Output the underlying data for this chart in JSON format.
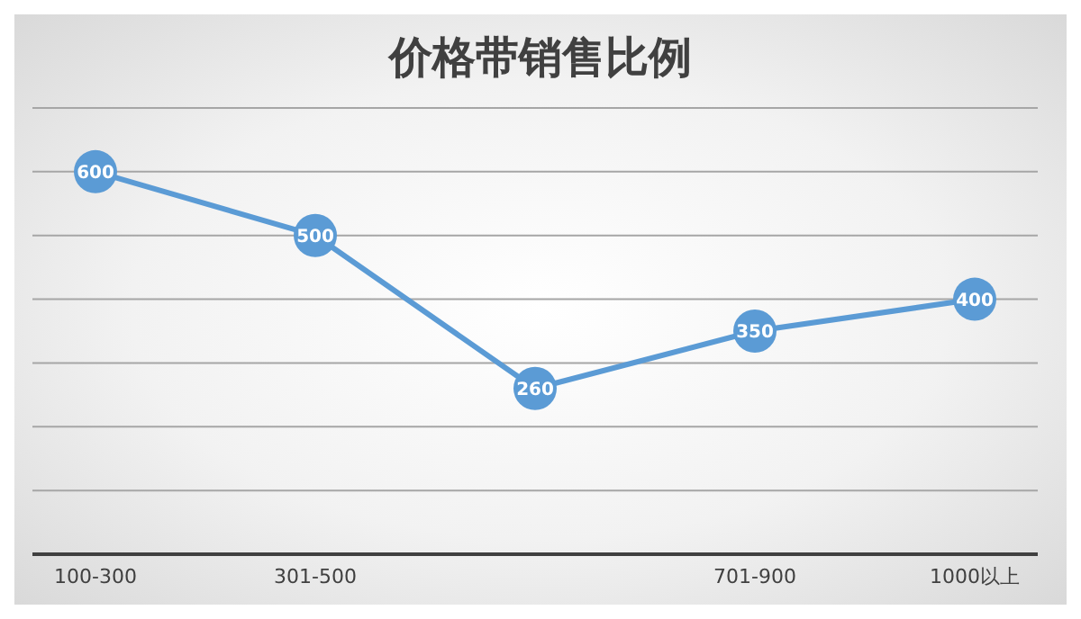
{
  "chart_data": {
    "type": "line",
    "title": "价格带销售比例",
    "categories": [
      "100-300",
      "301-500",
      null,
      "701-900",
      "1000以上"
    ],
    "series": [
      {
        "color": "#5b9bd5",
        "values": [
          600,
          500,
          260,
          350,
          400
        ]
      }
    ],
    "ylim": [
      0,
      700
    ],
    "tick_labels": "x",
    "grid": "y",
    "marker": "circle",
    "line_style": "solid",
    "data_labels": true
  }
}
